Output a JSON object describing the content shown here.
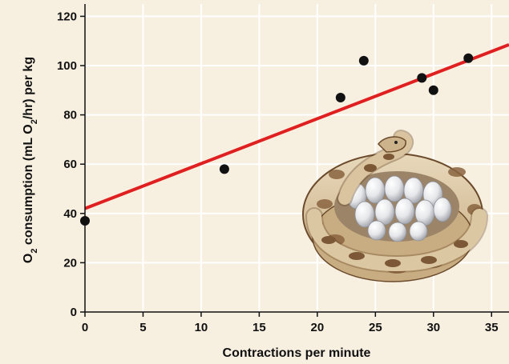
{
  "chart_data": {
    "type": "scatter",
    "xlabel": "Contractions  per minute",
    "ylabel": {
      "o": "O",
      "sub1": "2",
      "mid": " consumption   (mL O",
      "sub2": "2",
      "end": "/hr)  per  kg"
    },
    "xlim": [
      0,
      36.5
    ],
    "ylim": [
      0,
      125
    ],
    "x_ticks": [
      0,
      5,
      10,
      15,
      20,
      25,
      30,
      35
    ],
    "y_ticks": [
      0,
      20,
      40,
      60,
      80,
      100,
      120
    ],
    "grid": true,
    "points": [
      {
        "x": 0,
        "y": 37
      },
      {
        "x": 12,
        "y": 58
      },
      {
        "x": 22,
        "y": 87
      },
      {
        "x": 24,
        "y": 102
      },
      {
        "x": 29,
        "y": 95
      },
      {
        "x": 30,
        "y": 90
      },
      {
        "x": 33,
        "y": 103
      }
    ],
    "trendline": {
      "x1": 0,
      "y1": 42,
      "x2": 36.5,
      "y2": 108.5
    },
    "colors": {
      "background": "#f7efe0",
      "grid": "#ffffff",
      "points": "#111111",
      "trendline": "#e02020"
    }
  },
  "illustration": "python-coiled-on-eggs"
}
